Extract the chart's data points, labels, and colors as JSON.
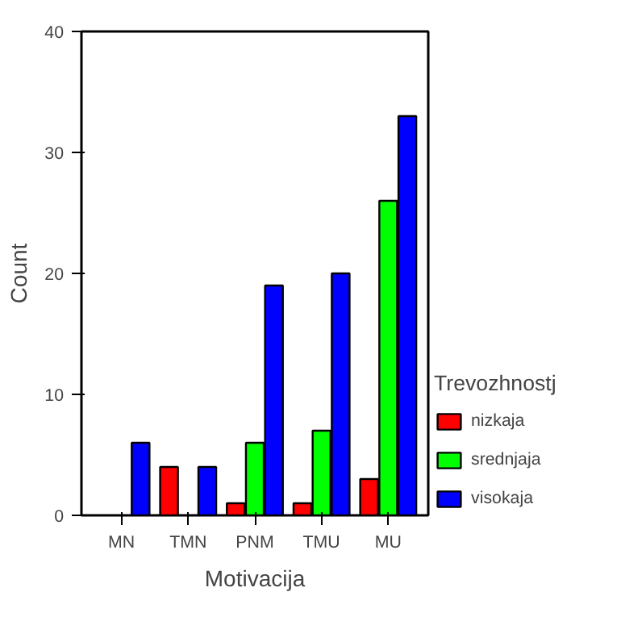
{
  "chart_data": {
    "type": "bar",
    "xlabel": "Motivacija",
    "ylabel": "Count",
    "legend_title": "Trevozhnostj",
    "categories": [
      "MN",
      "TMN",
      "PNM",
      "TMU",
      "MU"
    ],
    "series": [
      {
        "name": "nizkaja",
        "color": "#ff0000",
        "values": [
          null,
          4,
          1,
          1,
          3
        ]
      },
      {
        "name": "srednjaja",
        "color": "#00ff00",
        "values": [
          null,
          null,
          6,
          7,
          26
        ]
      },
      {
        "name": "visokaja",
        "color": "#0000ff",
        "values": [
          6,
          4,
          19,
          20,
          33
        ]
      }
    ],
    "ylim": [
      0,
      40
    ],
    "yticks": [
      0,
      10,
      20,
      30,
      40
    ],
    "legend": "right"
  }
}
